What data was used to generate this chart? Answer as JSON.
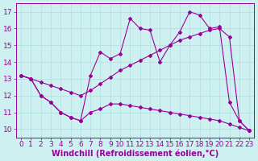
{
  "line1_x": [
    0,
    1,
    2,
    3,
    4,
    5,
    6,
    7,
    8,
    9,
    10,
    11,
    12,
    13,
    14,
    15,
    16,
    17,
    18,
    19,
    20,
    21,
    22,
    23
  ],
  "line1_y": [
    13.2,
    13.0,
    12.0,
    11.6,
    11.0,
    10.7,
    10.5,
    13.2,
    14.6,
    14.2,
    14.5,
    16.6,
    16.0,
    15.9,
    14.0,
    15.0,
    15.8,
    17.0,
    16.8,
    16.0,
    16.1,
    11.6,
    10.5,
    9.9
  ],
  "line2_x": [
    0,
    1,
    2,
    3,
    4,
    5,
    6,
    7,
    8,
    9,
    10,
    11,
    12,
    13,
    14,
    15,
    16,
    17,
    18,
    19,
    20,
    21,
    22,
    23
  ],
  "line2_y": [
    13.2,
    13.0,
    12.8,
    12.6,
    12.4,
    12.2,
    12.0,
    12.3,
    12.7,
    13.1,
    13.5,
    13.8,
    14.1,
    14.4,
    14.7,
    15.0,
    15.3,
    15.5,
    15.7,
    15.9,
    16.0,
    15.5,
    10.5,
    9.9
  ],
  "line3_x": [
    0,
    1,
    2,
    3,
    4,
    5,
    6,
    7,
    8,
    9,
    10,
    11,
    12,
    13,
    14,
    15,
    16,
    17,
    18,
    19,
    20,
    21,
    22,
    23
  ],
  "line3_y": [
    13.2,
    13.0,
    12.0,
    11.6,
    11.0,
    10.7,
    10.5,
    11.0,
    11.2,
    11.5,
    11.5,
    11.4,
    11.3,
    11.2,
    11.1,
    11.0,
    10.9,
    10.8,
    10.7,
    10.6,
    10.5,
    10.3,
    10.1,
    9.9
  ],
  "bg_color": "#cff0f0",
  "line_color": "#990099",
  "grid_color": "#b0dede",
  "xlim": [
    -0.5,
    23.5
  ],
  "ylim": [
    9.5,
    17.5
  ],
  "yticks": [
    10,
    11,
    12,
    13,
    14,
    15,
    16,
    17
  ],
  "xticks": [
    0,
    1,
    2,
    3,
    4,
    5,
    6,
    7,
    8,
    9,
    10,
    11,
    12,
    13,
    14,
    15,
    16,
    17,
    18,
    19,
    20,
    21,
    22,
    23
  ],
  "xlabel": "Windchill (Refroidissement éolien,°C)",
  "xlabel_fontsize": 7.0,
  "tick_fontsize": 6.5,
  "marker": "D",
  "marker_size": 2.0,
  "line_width": 0.8
}
